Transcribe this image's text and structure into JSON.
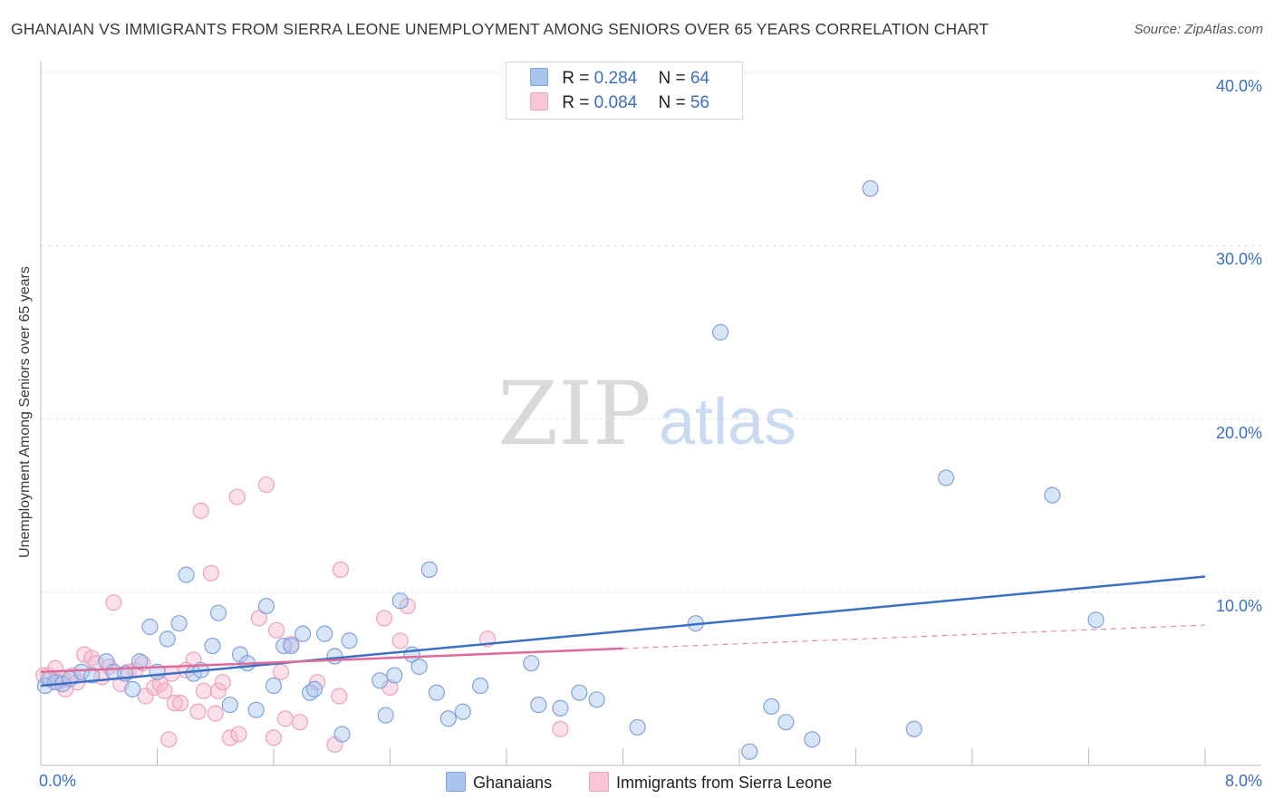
{
  "title": "GHANAIAN VS IMMIGRANTS FROM SIERRA LEONE UNEMPLOYMENT AMONG SENIORS OVER 65 YEARS CORRELATION CHART",
  "source": "Source: ZipAtlas.com",
  "watermark": {
    "zip": "ZIP",
    "atlas": "atlas"
  },
  "colors": {
    "blue": "#3b6fc4",
    "blue_fill": "#a9c5ee",
    "pink": "#e06a9a",
    "pink_fill": "#f7b8cf",
    "grid": "#e3e3e3"
  },
  "legend": {
    "row1": {
      "r_label": "R = ",
      "r_value": "0.284",
      "n_label": "N = ",
      "n_value": "64"
    },
    "row2": {
      "r_label": "R = ",
      "r_value": "0.084",
      "n_label": "N = ",
      "n_value": "56"
    }
  },
  "bottom_legend": {
    "series1": "Ghanaians",
    "series2": "Immigrants from Sierra Leone"
  },
  "chart_data": {
    "type": "scatter",
    "title": "GHANAIAN VS IMMIGRANTS FROM SIERRA LEONE UNEMPLOYMENT AMONG SENIORS OVER 65 YEARS CORRELATION CHART",
    "xlabel": "",
    "ylabel": "Unemployment Among Seniors over 65 years",
    "xlim": [
      0,
      8
    ],
    "ylim": [
      0,
      40
    ],
    "x_tick_labels": [
      "0.0%",
      "8.0%"
    ],
    "y_tick_labels": [
      "10.0%",
      "20.0%",
      "30.0%",
      "40.0%"
    ],
    "y_ticks": [
      10,
      20,
      30,
      40
    ],
    "series": [
      {
        "name": "Ghanaians",
        "r": 0.284,
        "n": 64,
        "trend": {
          "x": [
            0,
            8
          ],
          "y": [
            4.6,
            10.9
          ],
          "dashed_after": null
        },
        "points": [
          [
            0.03,
            4.6
          ],
          [
            0.06,
            5.0
          ],
          [
            0.1,
            4.8
          ],
          [
            0.15,
            4.7
          ],
          [
            0.2,
            5.0
          ],
          [
            0.28,
            5.4
          ],
          [
            0.35,
            5.2
          ],
          [
            0.45,
            6.0
          ],
          [
            0.5,
            5.4
          ],
          [
            0.58,
            5.3
          ],
          [
            0.63,
            4.4
          ],
          [
            0.68,
            6.0
          ],
          [
            0.75,
            8.0
          ],
          [
            0.8,
            5.4
          ],
          [
            0.87,
            7.3
          ],
          [
            0.95,
            8.2
          ],
          [
            1.0,
            11.0
          ],
          [
            1.05,
            5.3
          ],
          [
            1.1,
            5.5
          ],
          [
            1.18,
            6.9
          ],
          [
            1.22,
            8.8
          ],
          [
            1.3,
            3.5
          ],
          [
            1.37,
            6.4
          ],
          [
            1.42,
            5.9
          ],
          [
            1.48,
            3.2
          ],
          [
            1.55,
            9.2
          ],
          [
            1.6,
            4.6
          ],
          [
            1.67,
            6.9
          ],
          [
            1.72,
            6.9
          ],
          [
            1.8,
            7.6
          ],
          [
            1.85,
            4.2
          ],
          [
            1.88,
            4.4
          ],
          [
            1.95,
            7.6
          ],
          [
            2.02,
            6.3
          ],
          [
            2.07,
            1.8
          ],
          [
            2.12,
            7.2
          ],
          [
            2.33,
            4.9
          ],
          [
            2.37,
            2.9
          ],
          [
            2.43,
            5.2
          ],
          [
            2.47,
            9.5
          ],
          [
            2.55,
            6.4
          ],
          [
            2.6,
            5.7
          ],
          [
            2.67,
            11.3
          ],
          [
            2.72,
            4.2
          ],
          [
            2.8,
            2.7
          ],
          [
            2.9,
            3.1
          ],
          [
            3.02,
            4.6
          ],
          [
            3.37,
            5.9
          ],
          [
            3.42,
            3.5
          ],
          [
            3.57,
            3.3
          ],
          [
            3.7,
            4.2
          ],
          [
            3.82,
            3.8
          ],
          [
            4.1,
            2.2
          ],
          [
            4.5,
            8.2
          ],
          [
            4.67,
            25.0
          ],
          [
            4.87,
            0.8
          ],
          [
            5.02,
            3.4
          ],
          [
            5.12,
            2.5
          ],
          [
            5.3,
            1.5
          ],
          [
            5.7,
            33.3
          ],
          [
            6.0,
            2.1
          ],
          [
            6.22,
            16.6
          ],
          [
            6.95,
            15.6
          ],
          [
            7.25,
            8.4
          ]
        ]
      },
      {
        "name": "Immigrants from Sierra Leone",
        "r": 0.084,
        "n": 56,
        "trend": {
          "x": [
            0,
            8
          ],
          "y": [
            5.4,
            8.1
          ],
          "dashed_after": 4.0
        },
        "points": [
          [
            0.05,
            5.2
          ],
          [
            0.1,
            5.6
          ],
          [
            0.12,
            4.8
          ],
          [
            0.17,
            4.4
          ],
          [
            0.22,
            5.2
          ],
          [
            0.25,
            4.8
          ],
          [
            0.3,
            6.4
          ],
          [
            0.35,
            6.2
          ],
          [
            0.38,
            5.9
          ],
          [
            0.42,
            5.1
          ],
          [
            0.47,
            5.7
          ],
          [
            0.5,
            9.4
          ],
          [
            0.55,
            4.7
          ],
          [
            0.6,
            5.4
          ],
          [
            0.65,
            5.5
          ],
          [
            0.7,
            5.9
          ],
          [
            0.72,
            4.0
          ],
          [
            0.78,
            4.5
          ],
          [
            0.82,
            4.7
          ],
          [
            0.85,
            4.3
          ],
          [
            0.88,
            1.5
          ],
          [
            0.9,
            5.3
          ],
          [
            0.92,
            3.6
          ],
          [
            0.96,
            3.6
          ],
          [
            1.0,
            5.5
          ],
          [
            1.05,
            6.1
          ],
          [
            1.08,
            3.1
          ],
          [
            1.1,
            14.7
          ],
          [
            1.12,
            4.3
          ],
          [
            1.17,
            11.1
          ],
          [
            1.2,
            3.0
          ],
          [
            1.22,
            4.3
          ],
          [
            1.25,
            4.8
          ],
          [
            1.3,
            1.6
          ],
          [
            1.35,
            15.5
          ],
          [
            1.36,
            1.8
          ],
          [
            1.5,
            8.5
          ],
          [
            1.55,
            16.2
          ],
          [
            1.6,
            1.6
          ],
          [
            1.62,
            7.8
          ],
          [
            1.65,
            5.4
          ],
          [
            1.68,
            2.7
          ],
          [
            1.72,
            7.0
          ],
          [
            1.78,
            2.5
          ],
          [
            1.9,
            4.8
          ],
          [
            2.02,
            1.2
          ],
          [
            2.05,
            4.0
          ],
          [
            2.06,
            11.3
          ],
          [
            2.36,
            8.5
          ],
          [
            2.4,
            4.5
          ],
          [
            2.47,
            7.2
          ],
          [
            2.52,
            9.2
          ],
          [
            3.07,
            7.3
          ],
          [
            3.57,
            2.1
          ],
          [
            0.02,
            5.2
          ],
          [
            0.15,
            5.0
          ]
        ]
      }
    ]
  }
}
